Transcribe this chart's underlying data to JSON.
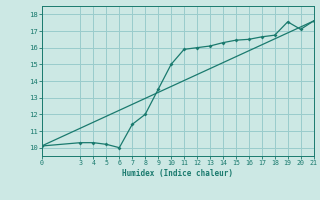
{
  "xlabel": "Humidex (Indice chaleur)",
  "xlim": [
    0,
    21
  ],
  "ylim": [
    9.5,
    18.5
  ],
  "yticks": [
    10,
    11,
    12,
    13,
    14,
    15,
    16,
    17,
    18
  ],
  "xticks": [
    0,
    3,
    4,
    5,
    6,
    7,
    8,
    9,
    10,
    11,
    12,
    13,
    14,
    15,
    16,
    17,
    18,
    19,
    20,
    21
  ],
  "bg_color": "#cce8e4",
  "grid_color": "#99cccc",
  "line_color": "#1a7a6e",
  "line1_x": [
    0,
    3,
    4,
    5,
    6,
    7,
    8,
    9,
    10,
    11,
    12,
    13,
    14,
    15,
    16,
    17,
    18,
    19,
    20,
    21
  ],
  "line1_y": [
    10.1,
    10.3,
    10.3,
    10.2,
    10.0,
    11.4,
    12.0,
    13.5,
    15.0,
    15.9,
    16.0,
    16.1,
    16.3,
    16.45,
    16.5,
    16.65,
    16.75,
    17.55,
    17.1,
    17.6
  ],
  "line2_x": [
    0,
    21
  ],
  "line2_y": [
    10.1,
    17.6
  ]
}
